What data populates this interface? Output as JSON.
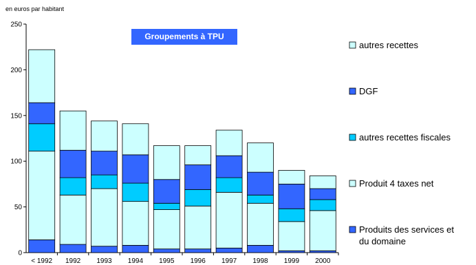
{
  "chart_data": {
    "type": "bar",
    "stacked": true,
    "title": "Groupements à TPU",
    "ylabel": "en euros par habitant",
    "xlabel": "",
    "ylim": [
      0,
      250
    ],
    "yticks": [
      0,
      50,
      100,
      150,
      200,
      250
    ],
    "grid": false,
    "legend_position": "right",
    "categories": [
      "< 1992",
      "1992",
      "1993",
      "1994",
      "1995",
      "1996",
      "1997",
      "1998",
      "1999",
      "2000"
    ],
    "series": [
      {
        "name": "Produits des services et du domaine",
        "color": "#3366ff",
        "values": [
          14,
          9,
          7,
          8,
          4,
          4,
          5,
          8,
          2,
          2
        ]
      },
      {
        "name": "Produit 4 taxes net",
        "color": "#ccffff",
        "values": [
          97,
          54,
          63,
          48,
          43,
          47,
          61,
          46,
          32,
          44
        ]
      },
      {
        "name": "autres recettes fiscales",
        "color": "#00ccff",
        "values": [
          30,
          19,
          15,
          20,
          7,
          18,
          16,
          9,
          14,
          12
        ]
      },
      {
        "name": "DGF",
        "color": "#3366ff",
        "values": [
          23,
          30,
          26,
          31,
          26,
          27,
          24,
          25,
          27,
          12
        ]
      },
      {
        "name": "autres recettes",
        "color": "#ccffff",
        "values": [
          58,
          43,
          33,
          34,
          37,
          21,
          28,
          32,
          15,
          14
        ]
      }
    ],
    "legend_order": [
      "autres recettes",
      "DGF",
      "autres recettes fiscales",
      "Produit 4 taxes net",
      "Produits des services et du domaine"
    ],
    "title_box_color": "#3366ff"
  }
}
